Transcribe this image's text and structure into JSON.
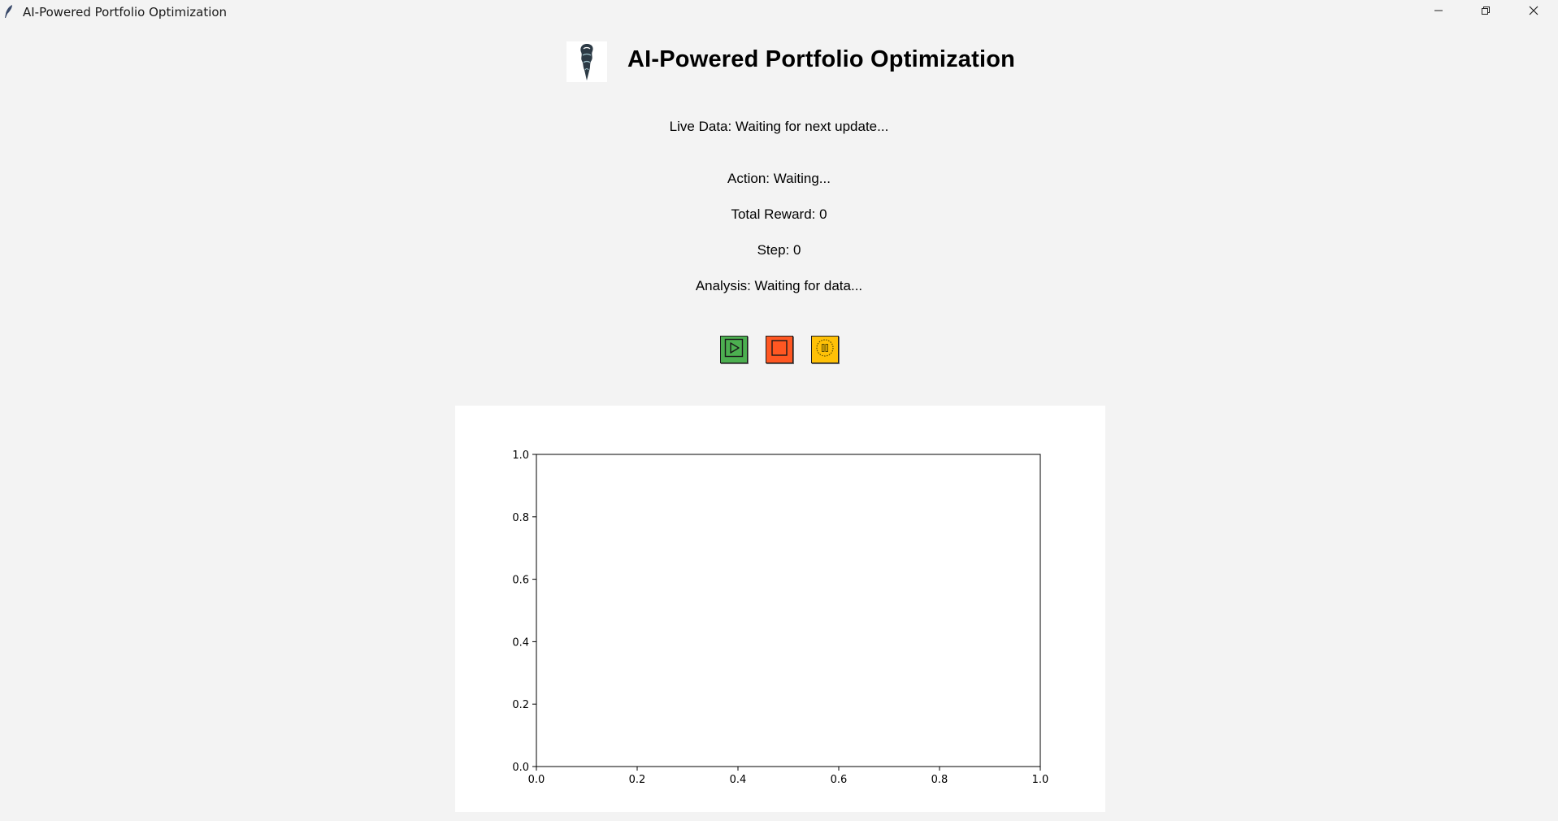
{
  "window": {
    "title": "AI-Powered Portfolio Optimization"
  },
  "header": {
    "title": "AI-Powered Portfolio Optimization"
  },
  "status": {
    "live_data": "Live Data: Waiting for next update...",
    "action": "Action: Waiting...",
    "total_reward": "Total Reward: 0",
    "step": "Step: 0",
    "analysis": "Analysis: Waiting for data..."
  },
  "controls": {
    "play_icon": "play-icon",
    "stop_icon": "stop-icon",
    "pause_icon": "pause-icon",
    "play_color": "#4caf50",
    "stop_color": "#ff5722",
    "pause_color": "#ffc107"
  },
  "chart_data": {
    "type": "line",
    "title": "",
    "xlabel": "",
    "ylabel": "",
    "series": [],
    "xlim": [
      0.0,
      1.0
    ],
    "ylim": [
      0.0,
      1.0
    ],
    "xticks": [
      "0.0",
      "0.2",
      "0.4",
      "0.6",
      "0.8",
      "1.0"
    ],
    "yticks": [
      "0.0",
      "0.2",
      "0.4",
      "0.6",
      "0.8",
      "1.0"
    ],
    "grid": false
  }
}
